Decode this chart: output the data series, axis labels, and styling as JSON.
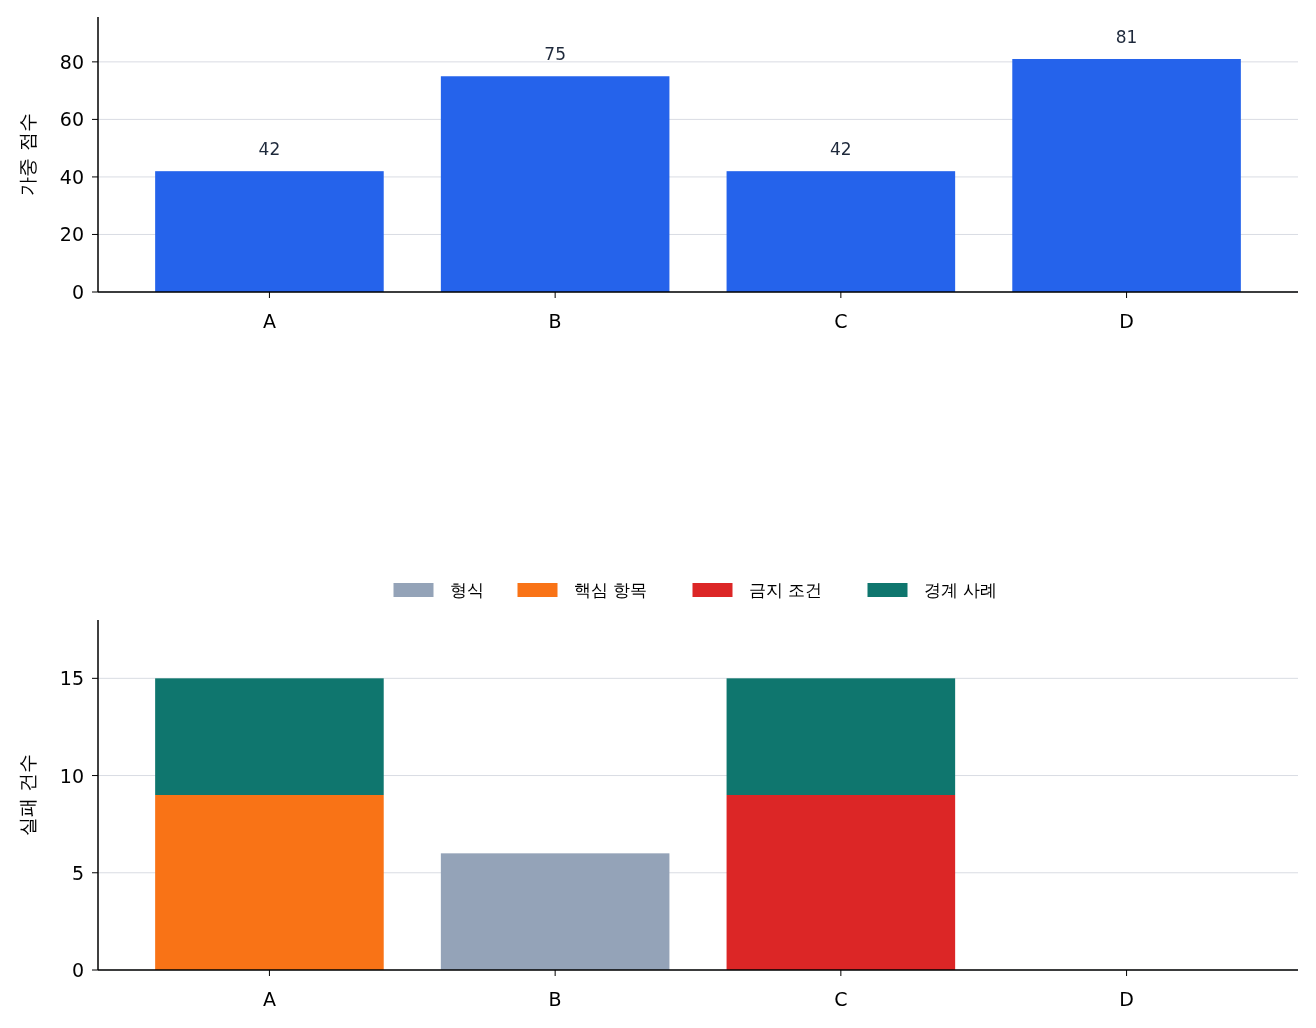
{
  "chart_data": [
    {
      "type": "bar",
      "ylabel": "가중 점수",
      "categories": [
        "A",
        "B",
        "C",
        "D"
      ],
      "values": [
        42,
        75,
        42,
        81
      ],
      "color": "#2563eb",
      "ylim": [
        0,
        95.6
      ],
      "yticks": [
        0,
        20,
        40,
        60,
        80
      ],
      "grid": "y",
      "data_labels": true
    },
    {
      "type": "bar",
      "ylabel": "실패 건수",
      "categories": [
        "A",
        "B",
        "C",
        "D"
      ],
      "stacked": true,
      "legend": "top",
      "grid": "y",
      "ylim": [
        0,
        18
      ],
      "yticks": [
        0,
        5,
        10,
        15
      ],
      "series": [
        {
          "name": "형식",
          "color": "#94a3b8",
          "values": [
            0,
            6,
            0,
            0
          ]
        },
        {
          "name": "핵심 항목",
          "color": "#f97316",
          "values": [
            9,
            0,
            0,
            0
          ]
        },
        {
          "name": "금지 조건",
          "color": "#dc2626",
          "values": [
            0,
            0,
            9,
            0
          ]
        },
        {
          "name": "경계 사례",
          "color": "#0f766e",
          "values": [
            6,
            0,
            6,
            0
          ]
        }
      ]
    }
  ]
}
